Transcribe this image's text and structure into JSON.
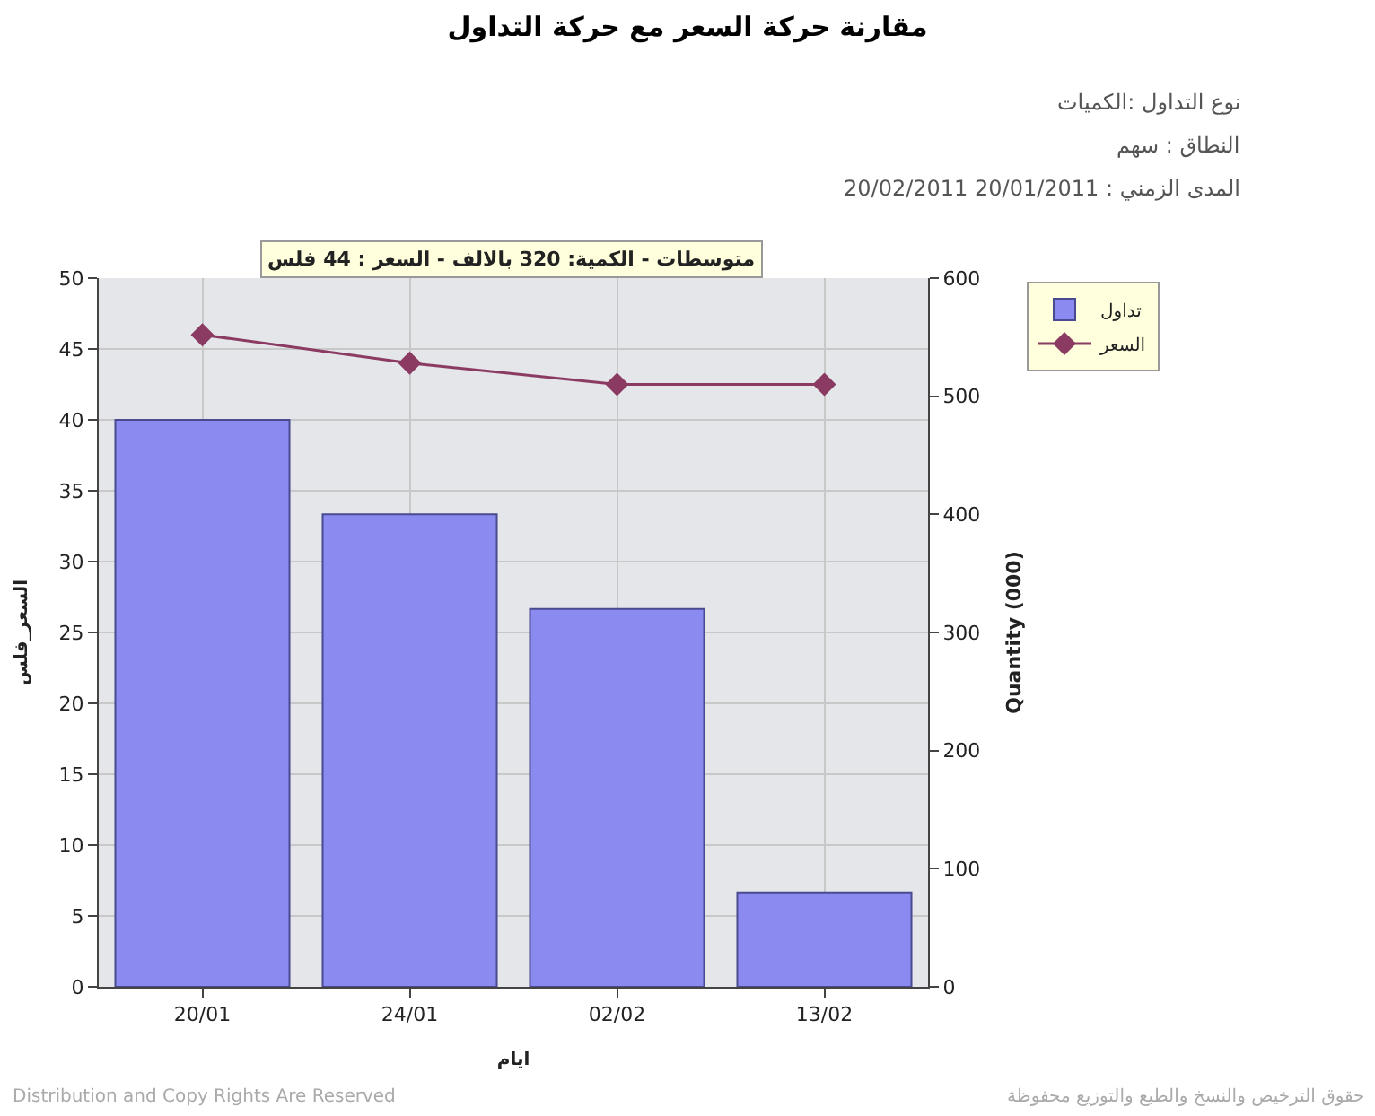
{
  "chart_data": {
    "type": "bar",
    "title": "مقارنة حركة السعر مع حركة التداول",
    "categories": [
      "20/01",
      "24/01",
      "02/02",
      "13/02"
    ],
    "xlabel": "ايام",
    "ylabel": "السعر_فلس",
    "y2label": "Quantity (000)",
    "series": [
      {
        "name": "تداول",
        "axis": "y2",
        "color": "#8a8af0",
        "values": [
          480,
          400,
          320,
          80
        ]
      },
      {
        "name": "السعر",
        "type": "line",
        "color": "#8b3a62",
        "marker": "diamond",
        "values": [
          46,
          44,
          42.5,
          42.5
        ]
      }
    ],
    "ylim": [
      0,
      50
    ],
    "yticks": [
      0,
      5,
      10,
      15,
      20,
      25,
      30,
      35,
      40,
      45,
      50
    ],
    "y2lim": [
      0,
      600
    ],
    "y2ticks": [
      0,
      100,
      200,
      300,
      400,
      500,
      600
    ],
    "grid": true,
    "legend": "top right",
    "annotations": [
      "نوع التداول :الكميات",
      "النطاق : سهم",
      "المدى الزمني : 20/01/2011 20/02/2011",
      "متوسطات - الكمية: 320 بالالف - السعر : 44 فلس",
      "Distribution and Copy Rights Are Reserved",
      "حقوق الترخيص والنسخ والطبع والتوزيع محفوظة"
    ]
  }
}
